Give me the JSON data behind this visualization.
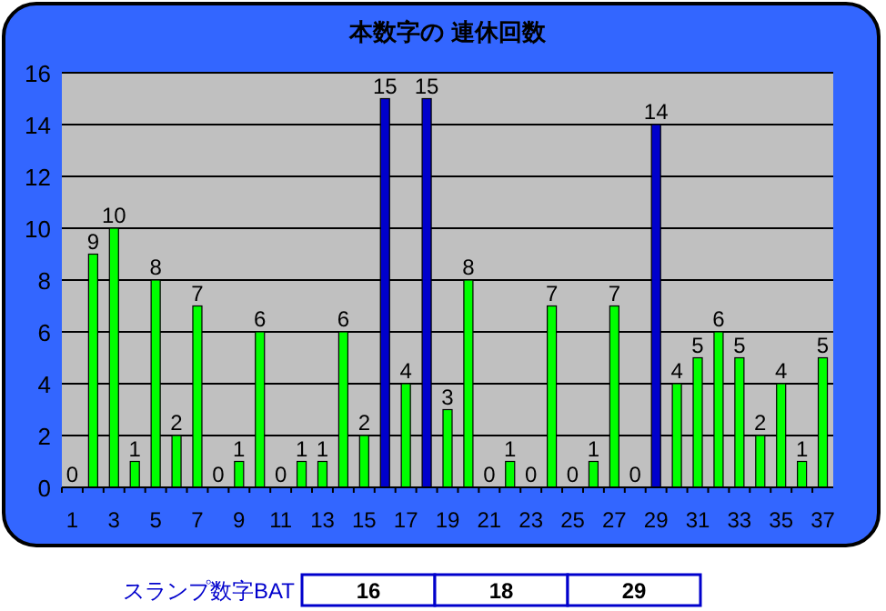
{
  "chart_data": {
    "type": "bar",
    "title": "本数字の 連休回数",
    "categories": [
      "1",
      null,
      "3",
      null,
      "5",
      null,
      "7",
      null,
      "9",
      null,
      "11",
      null,
      "13",
      null,
      "15",
      null,
      "17",
      null,
      "19",
      null,
      "21",
      null,
      "23",
      null,
      "25",
      null,
      "27",
      null,
      "29",
      null,
      "31",
      null,
      "33",
      null,
      "35",
      null,
      "37"
    ],
    "values": [
      0,
      9,
      10,
      1,
      8,
      2,
      7,
      0,
      1,
      6,
      0,
      1,
      1,
      6,
      2,
      15,
      4,
      15,
      3,
      8,
      0,
      1,
      0,
      7,
      0,
      1,
      7,
      0,
      14,
      4,
      5,
      6,
      5,
      2,
      4,
      1,
      5
    ],
    "colors": [
      "#00ff00",
      "#00ff00",
      "#00ff00",
      "#00ff00",
      "#00ff00",
      "#00ff00",
      "#00ff00",
      "#00ff00",
      "#00ff00",
      "#00ff00",
      "#00ff00",
      "#00ff00",
      "#00ff00",
      "#00ff00",
      "#00ff00",
      "#0000cc",
      "#00ff00",
      "#0000cc",
      "#00ff00",
      "#00ff00",
      "#00ff00",
      "#00ff00",
      "#00ff00",
      "#00ff00",
      "#00ff00",
      "#00ff00",
      "#00ff00",
      "#00ff00",
      "#0000cc",
      "#00ff00",
      "#00ff00",
      "#00ff00",
      "#00ff00",
      "#00ff00",
      "#00ff00",
      "#00ff00",
      "#00ff00"
    ],
    "ylim": [
      0,
      16
    ],
    "yticks": [
      0,
      2,
      4,
      6,
      8,
      10,
      12,
      14,
      16
    ],
    "grid": "y",
    "data_labels": true,
    "annotations": [
      "スランプ数字BAT",
      "16",
      "18",
      "29"
    ]
  }
}
